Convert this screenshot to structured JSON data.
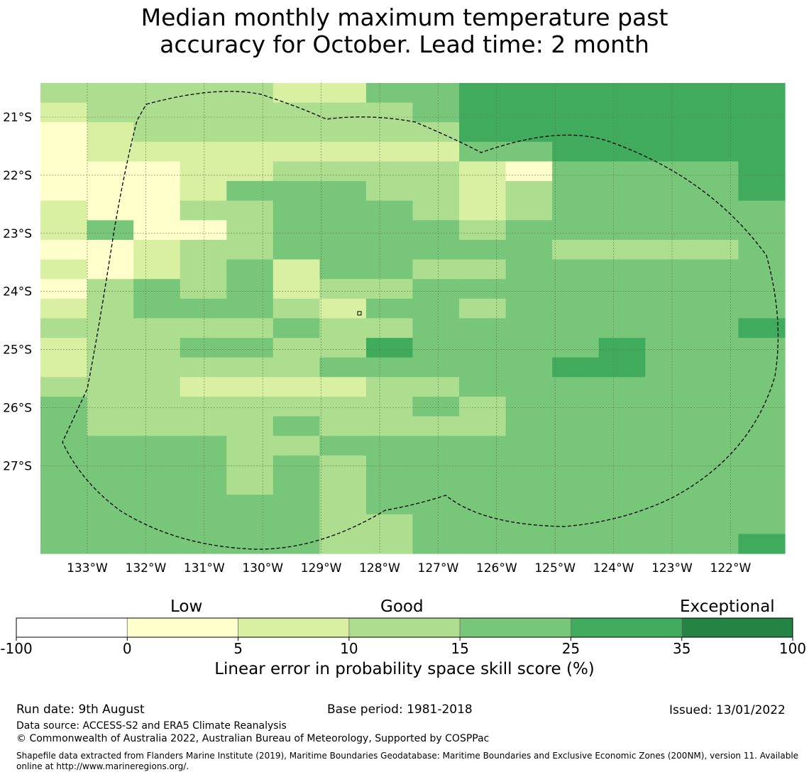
{
  "title_line1": "Median monthly maximum temperature past",
  "title_line2": "accuracy for October. Lead time: 2 month",
  "map": {
    "lon_ticks": [
      "133°W",
      "132°W",
      "131°W",
      "130°W",
      "129°W",
      "128°W",
      "127°W",
      "126°W",
      "125°W",
      "124°W",
      "123°W",
      "122°W"
    ],
    "lat_ticks": [
      "21°S",
      "22°S",
      "23°S",
      "24°S",
      "25°S",
      "26°S",
      "27°S"
    ],
    "grid_lines": true,
    "grid_colors": [
      "#ffffcc",
      "#d9f0a3",
      "#addd8e",
      "#78c679",
      "#41ab5d"
    ],
    "cells": [
      "2222211334444444",
      "1222222234444444",
      "0122222224444444",
      "0111111113344444",
      "0001122221033334",
      "0001333221233334",
      "1002233321233333",
      "1300233332333333",
      "0012233333322223",
      "1012313322333333",
      "0232312233333333",
      "1233321332333333",
      "2222232233333334",
      "1223322433334333",
      "1222223333344333",
      "2221111223333333",
      "3222222232333333",
      "3222232222333333",
      "3333223333333333",
      "3333232333333333",
      "3333232333333333",
      "3333332333333333",
      "3333332233333333",
      "3333332233333334"
    ]
  },
  "colorbar": {
    "categories": [
      "Low",
      "Good",
      "Exceptional"
    ],
    "ticks": [
      "-100",
      "0",
      "5",
      "10",
      "15",
      "25",
      "35",
      "100"
    ],
    "colors": [
      "#ffffff",
      "#ffffcc",
      "#d9f0a3",
      "#addd8e",
      "#78c679",
      "#41ab5d",
      "#238443"
    ],
    "label": "Linear error in probability space skill score (%)"
  },
  "footer": {
    "run_date": "Run date: 9th August",
    "base_period": "Base period: 1981-2018",
    "issued": "Issued: 13/01/2022",
    "data_source": "Data source: ACCESS-S2 and ERA5 Climate Reanalysis",
    "copyright": "© Commonwealth of Australia 2022, Australian Bureau of Meteorology, Supported by COSPPac",
    "shapefile": "Shapefile data extracted from Flanders Marine Institute (2019), Maritime Boundaries Geodatabase: Maritime Boundaries and Exclusive Economic Zones (200NM), version 11. Available online at http://www.marineregions.org/."
  }
}
